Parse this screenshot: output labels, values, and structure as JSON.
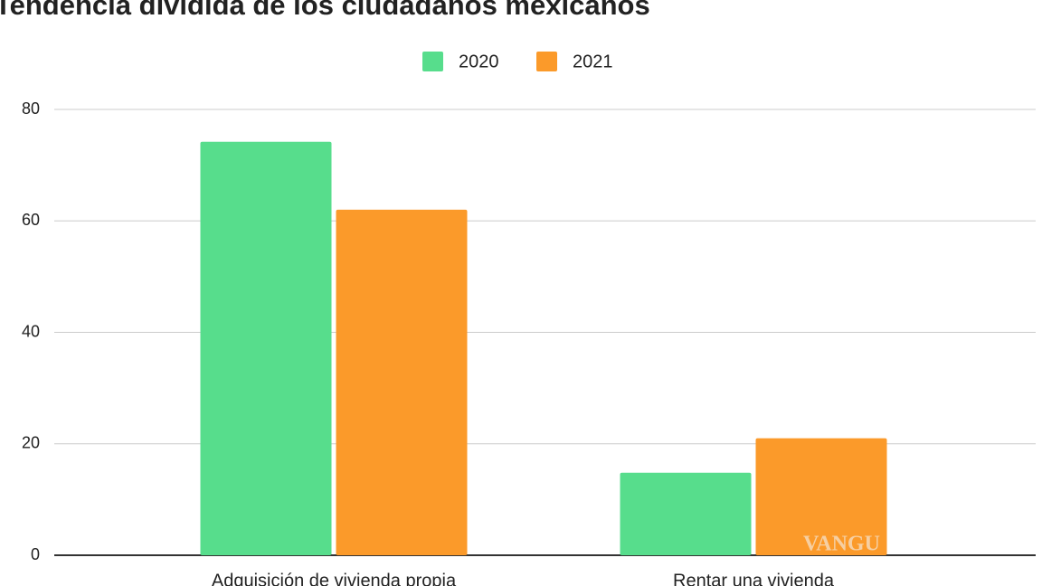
{
  "chart_data": {
    "type": "bar",
    "title": "Tendencia dividida de los ciudadanos mexicanos",
    "categories": [
      "Adquisición de vivienda propia",
      "Rentar una vivienda"
    ],
    "series": [
      {
        "name": "2020",
        "color": "#57dd8c",
        "values": [
          74.2,
          14.8
        ]
      },
      {
        "name": "2021",
        "color": "#fb9a2a",
        "values": [
          62,
          21
        ]
      }
    ],
    "ylim": [
      0,
      80
    ],
    "yticks": [
      0,
      20,
      40,
      60,
      80
    ],
    "grid": true,
    "legend": "top",
    "watermark": "VANGU"
  }
}
